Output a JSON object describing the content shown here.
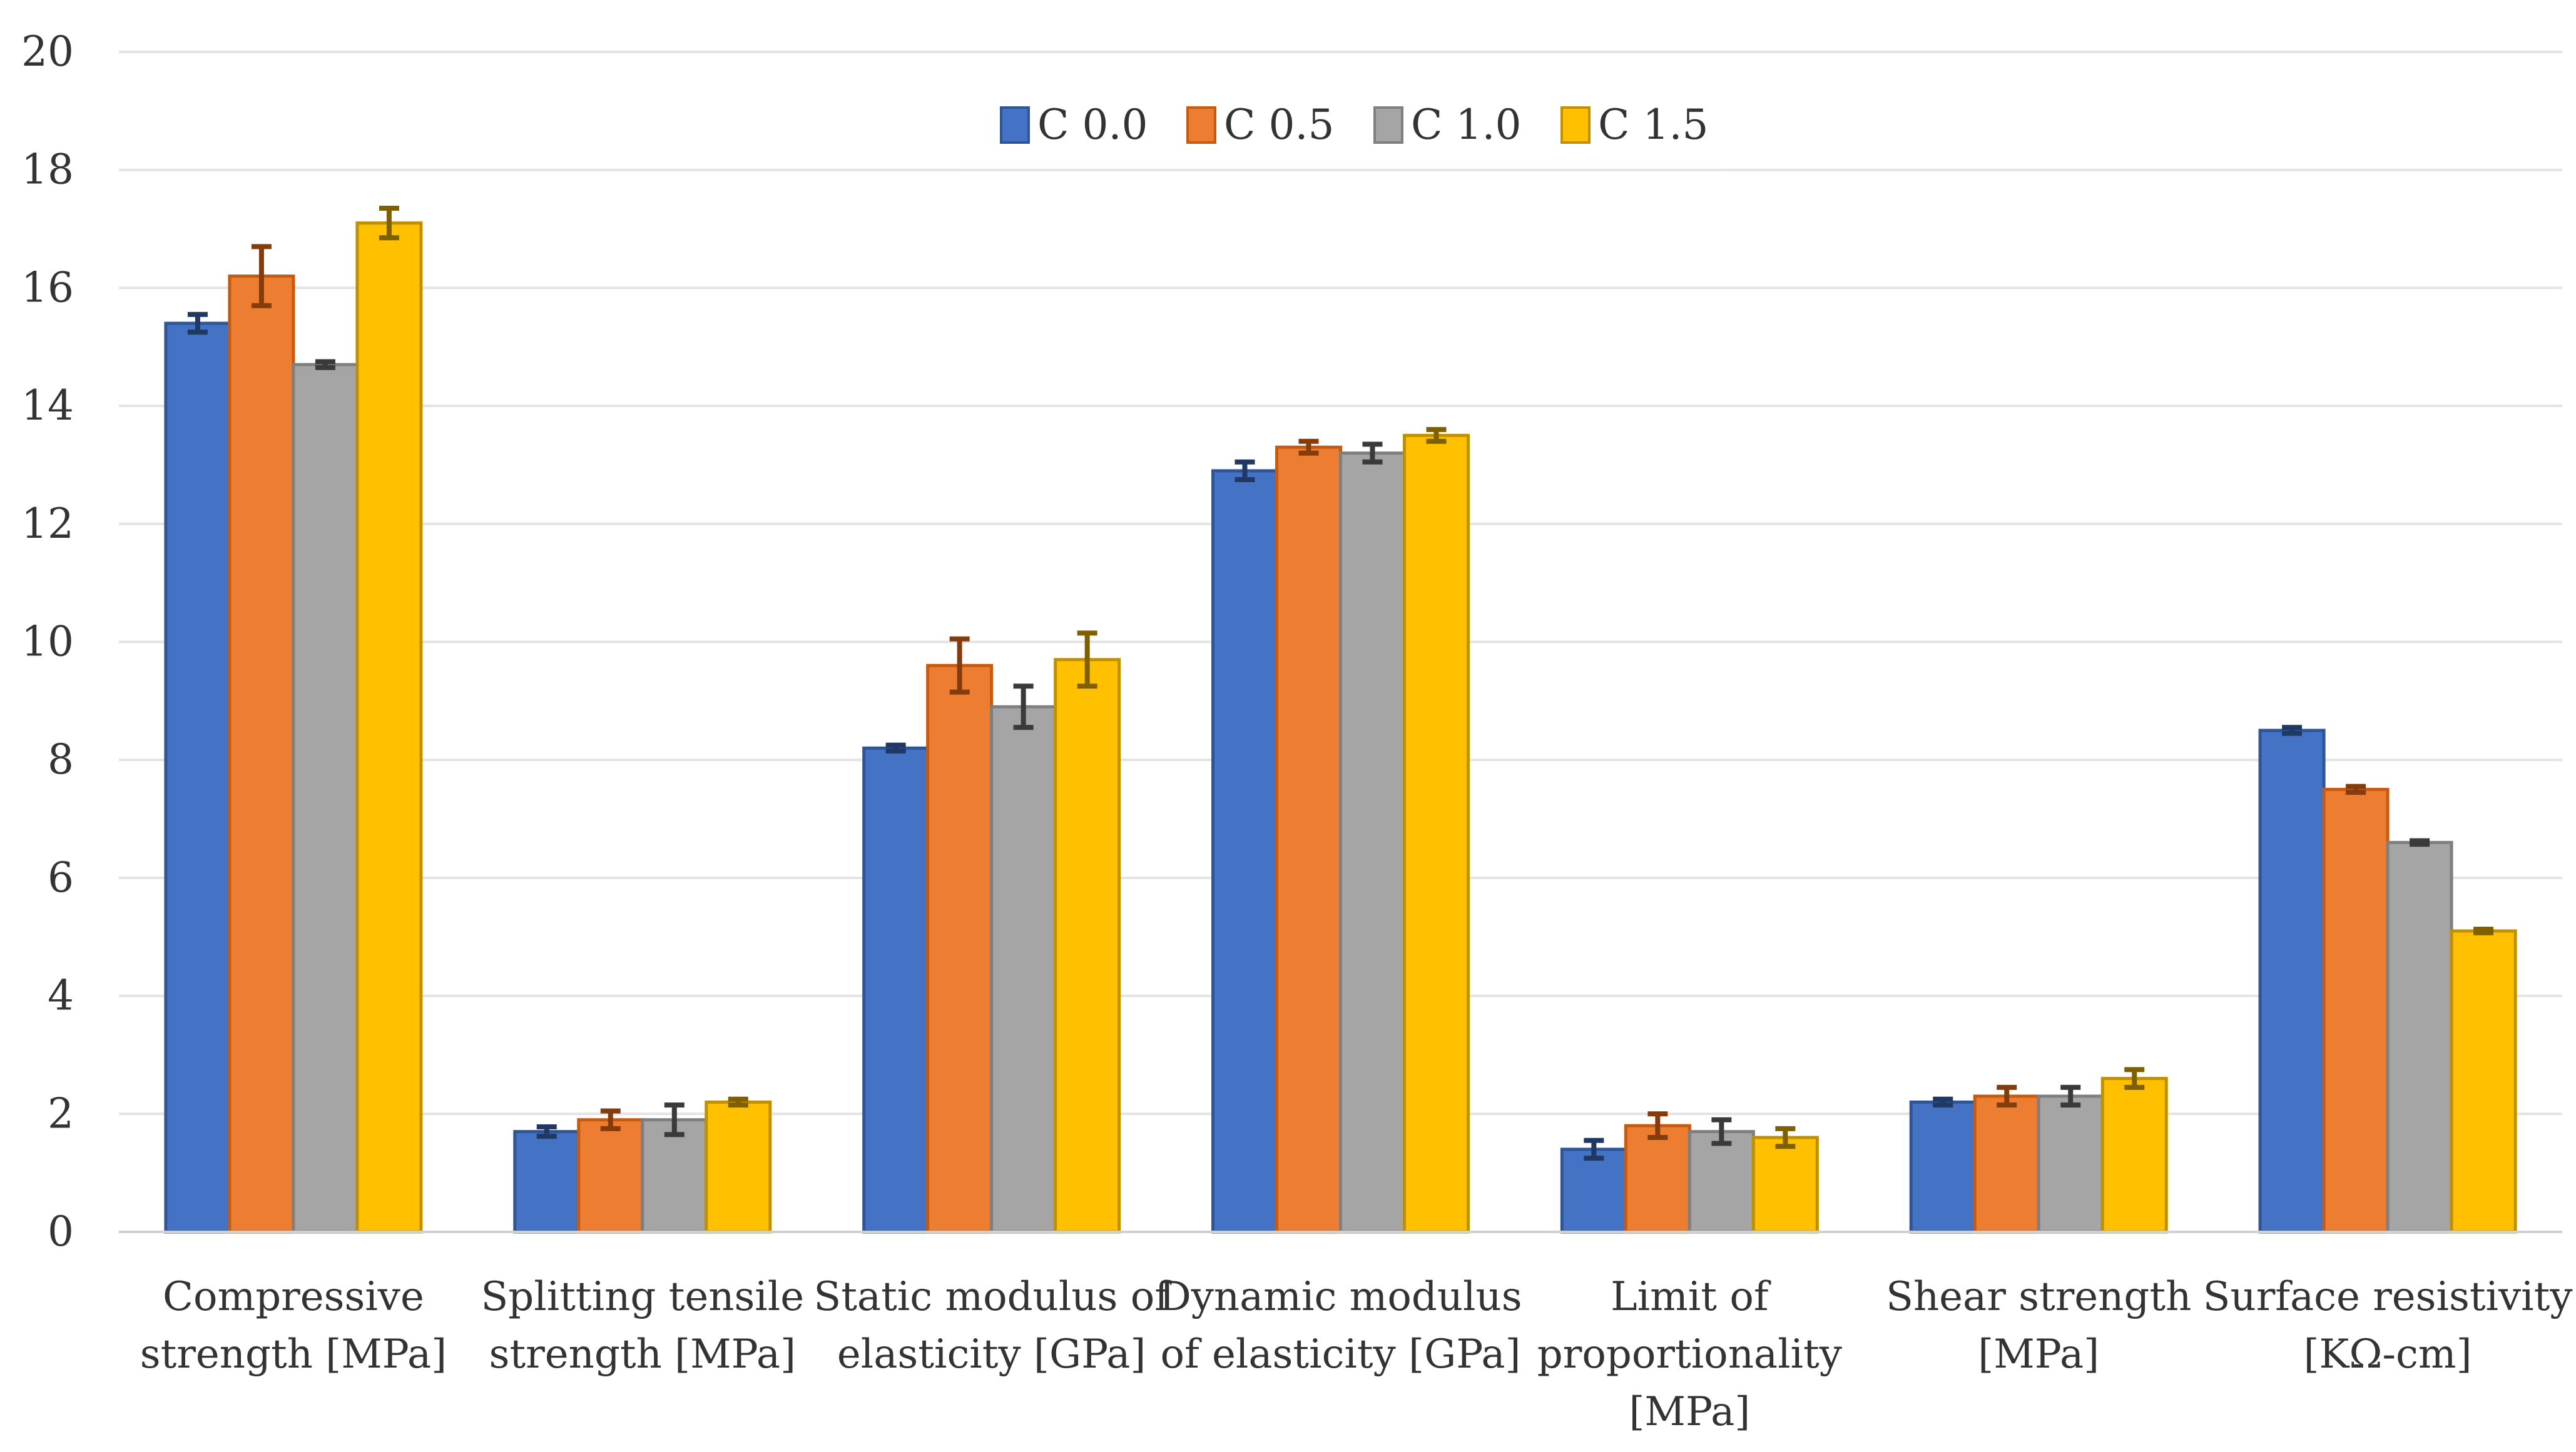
{
  "chart_data": {
    "type": "bar",
    "title": "",
    "xlabel": "",
    "ylabel": "",
    "ylim": [
      0,
      20
    ],
    "yticks": [
      "0",
      "2",
      "4",
      "6",
      "8",
      "10",
      "12",
      "14",
      "16",
      "18",
      "20"
    ],
    "grid": true,
    "legend_position": "top-center",
    "categories": [
      [
        "Compressive",
        "strength [MPa]"
      ],
      [
        "Splitting tensile",
        "strength [MPa]"
      ],
      [
        "Static modulus of",
        "elasticity [GPa]"
      ],
      [
        "Dynamic modulus",
        "of elasticity [GPa]"
      ],
      [
        "Limit of",
        "proportionality",
        "[MPa]"
      ],
      [
        "Shear strength",
        "[MPa]"
      ],
      [
        "Surface resistivity",
        "[KΩ-cm]"
      ]
    ],
    "series": [
      {
        "name": "C 0.0",
        "color": "#4472C4",
        "edge": "#2F5597",
        "err_color": "#1F3864",
        "values": [
          15.4,
          1.7,
          8.2,
          12.9,
          1.4,
          2.2,
          8.5
        ],
        "errors": [
          0.15,
          0.08,
          0.05,
          0.15,
          0.15,
          0.05,
          0.05
        ]
      },
      {
        "name": "C 0.5",
        "color": "#ED7D31",
        "edge": "#C55A11",
        "err_color": "#843C0C",
        "values": [
          16.2,
          1.9,
          9.6,
          13.3,
          1.8,
          2.3,
          7.5
        ],
        "errors": [
          0.5,
          0.15,
          0.45,
          0.1,
          0.2,
          0.15,
          0.05
        ]
      },
      {
        "name": "C 1.0",
        "color": "#A5A5A5",
        "edge": "#7F7F7F",
        "err_color": "#3A3A3A",
        "values": [
          14.7,
          1.9,
          8.9,
          13.2,
          1.7,
          2.3,
          6.6
        ],
        "errors": [
          0.05,
          0.25,
          0.35,
          0.15,
          0.2,
          0.15,
          0.03
        ]
      },
      {
        "name": "C 1.5",
        "color": "#FFC000",
        "edge": "#BF9000",
        "err_color": "#7F6000",
        "values": [
          17.1,
          2.2,
          9.7,
          13.5,
          1.6,
          2.6,
          5.1
        ],
        "errors": [
          0.25,
          0.05,
          0.45,
          0.1,
          0.15,
          0.15,
          0.03
        ]
      }
    ]
  }
}
